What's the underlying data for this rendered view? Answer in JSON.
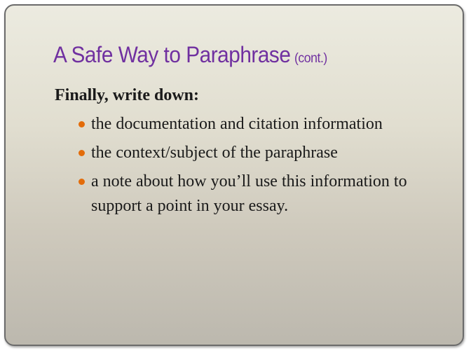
{
  "slide": {
    "title": "A Safe Way to Paraphrase",
    "title_suffix": "(cont.)",
    "lead": "Finally, write down:",
    "bullets": [
      "the documentation and citation information",
      "the context/subject of the paraphrase",
      "a note about how you’ll use this information to support a point in your essay."
    ]
  },
  "colors": {
    "title": "#7030a0",
    "bullet": "#e36c0a",
    "text": "#1a1a1a"
  },
  "icons": {
    "bullet": "bullet-dot-icon"
  }
}
